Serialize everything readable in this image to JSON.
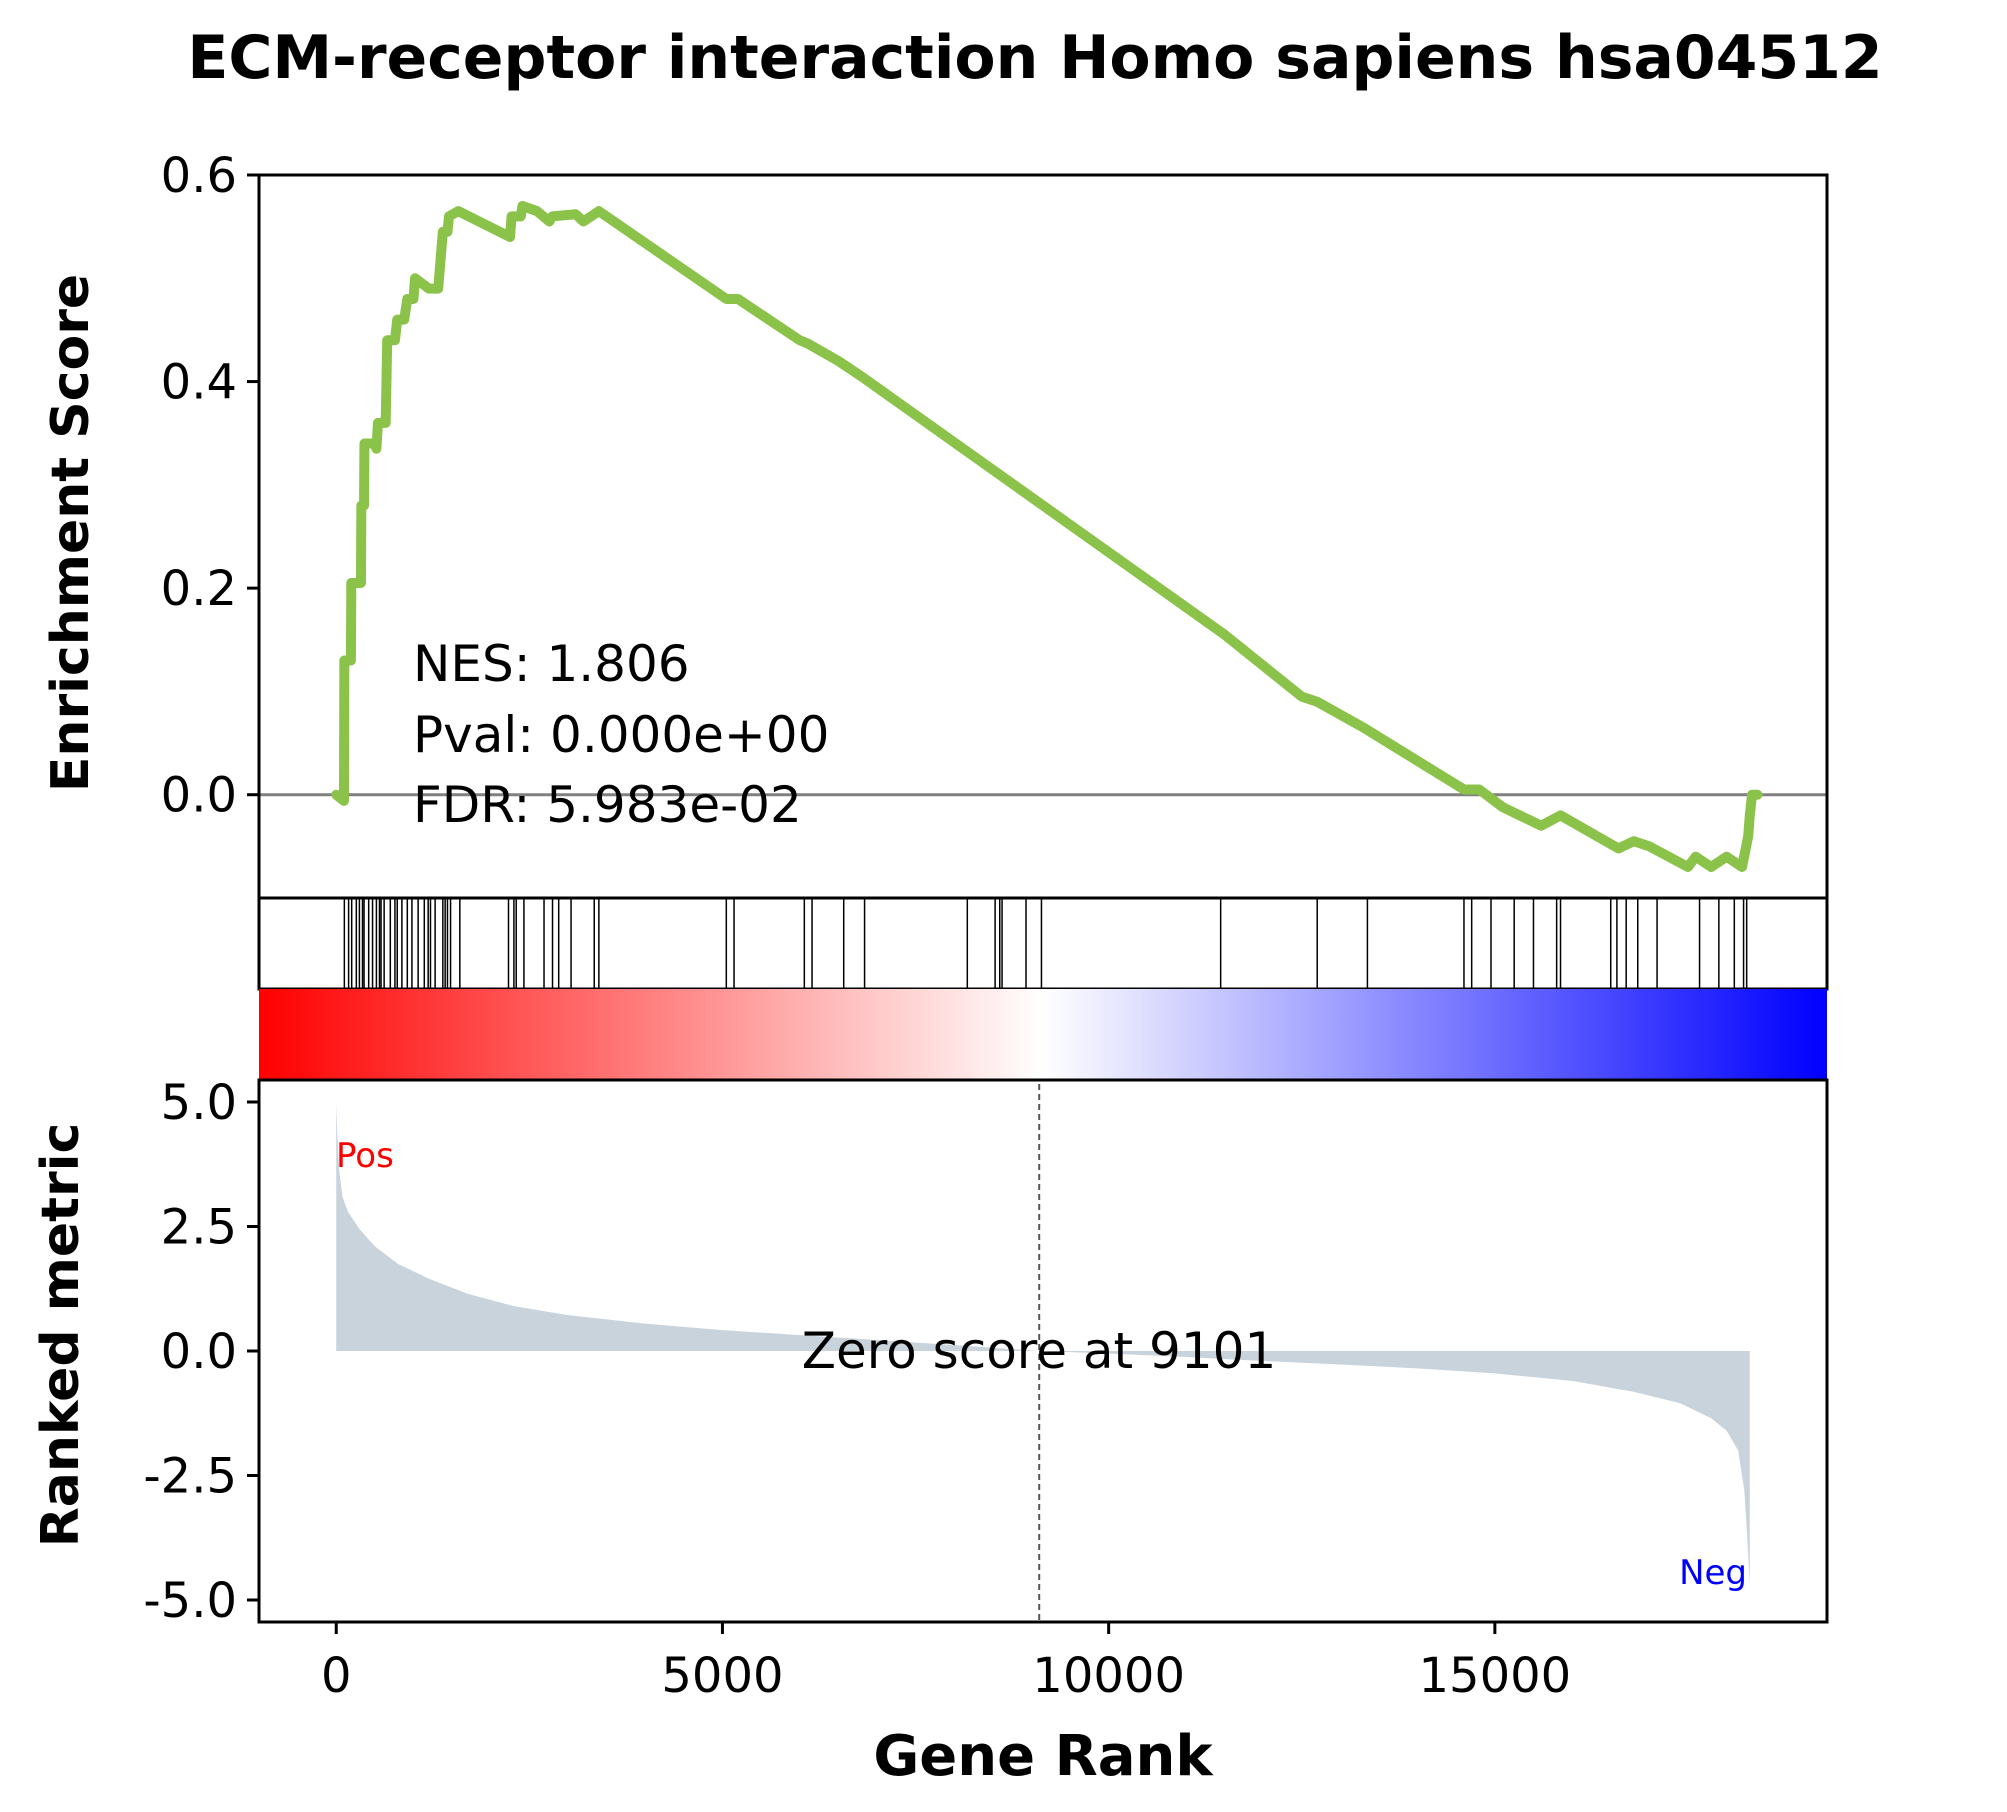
{
  "chart_data": {
    "type": "line",
    "title": "ECM-receptor interaction Homo sapiens hsa04512",
    "x_axis": {
      "label": "Gene Rank",
      "range": [
        -1000,
        19300
      ],
      "ticks": [
        0,
        5000,
        10000,
        15000
      ],
      "tick_labels": [
        "0",
        "5000",
        "10000",
        "15000"
      ]
    },
    "es_panel": {
      "ylabel": "Enrichment Score",
      "ylim": [
        -0.1,
        0.6
      ],
      "yticks": [
        0.0,
        0.2,
        0.4,
        0.6
      ],
      "ytick_labels": [
        "0.0",
        "0.2",
        "0.4",
        "0.6"
      ],
      "line_color": "#8bc34a",
      "zero_line_color": "#808080",
      "annotations": [
        "NES: 1.806",
        "Pval: 0.000e+00",
        "FDR: 5.983e-02"
      ],
      "es_curve": [
        [
          0,
          0.0
        ],
        [
          100,
          -0.006
        ],
        [
          105,
          0.13
        ],
        [
          190,
          0.13
        ],
        [
          195,
          0.205
        ],
        [
          320,
          0.205
        ],
        [
          325,
          0.28
        ],
        [
          360,
          0.28
        ],
        [
          365,
          0.34
        ],
        [
          500,
          0.34
        ],
        [
          520,
          0.335
        ],
        [
          540,
          0.36
        ],
        [
          640,
          0.36
        ],
        [
          660,
          0.44
        ],
        [
          760,
          0.44
        ],
        [
          790,
          0.46
        ],
        [
          880,
          0.46
        ],
        [
          920,
          0.48
        ],
        [
          1000,
          0.48
        ],
        [
          1020,
          0.5
        ],
        [
          1200,
          0.49
        ],
        [
          1320,
          0.49
        ],
        [
          1380,
          0.545
        ],
        [
          1440,
          0.545
        ],
        [
          1460,
          0.56
        ],
        [
          1580,
          0.565
        ],
        [
          2250,
          0.54
        ],
        [
          2270,
          0.56
        ],
        [
          2390,
          0.56
        ],
        [
          2410,
          0.57
        ],
        [
          2600,
          0.565
        ],
        [
          2760,
          0.555
        ],
        [
          2800,
          0.56
        ],
        [
          3100,
          0.562
        ],
        [
          3200,
          0.555
        ],
        [
          3400,
          0.565
        ],
        [
          5050,
          0.48
        ],
        [
          5200,
          0.48
        ],
        [
          6000,
          0.44
        ],
        [
          6100,
          0.437
        ],
        [
          6500,
          0.42
        ],
        [
          6800,
          0.405
        ],
        [
          11500,
          0.155
        ],
        [
          12500,
          0.095
        ],
        [
          12700,
          0.09
        ],
        [
          13300,
          0.065
        ],
        [
          14600,
          0.005
        ],
        [
          14800,
          0.005
        ],
        [
          15100,
          -0.012
        ],
        [
          15600,
          -0.03
        ],
        [
          15850,
          -0.02
        ],
        [
          16600,
          -0.052
        ],
        [
          16800,
          -0.045
        ],
        [
          17000,
          -0.05
        ],
        [
          17500,
          -0.07
        ],
        [
          17600,
          -0.06
        ],
        [
          17800,
          -0.07
        ],
        [
          18000,
          -0.06
        ],
        [
          18200,
          -0.07
        ],
        [
          18280,
          -0.04
        ],
        [
          18300,
          -0.02
        ],
        [
          18330,
          0.0
        ],
        [
          18400,
          0.0
        ]
      ]
    },
    "hits_panel": {
      "hit_ranks": [
        105,
        160,
        200,
        260,
        300,
        340,
        360,
        420,
        470,
        520,
        560,
        580,
        620,
        700,
        760,
        790,
        850,
        920,
        980,
        1060,
        1140,
        1190,
        1220,
        1280,
        1380,
        1410,
        1440,
        1480,
        1600,
        2230,
        2300,
        2330,
        2430,
        2690,
        2800,
        2880,
        3040,
        3340,
        3400,
        5050,
        5150,
        6060,
        6160,
        6570,
        6840,
        8170,
        8530,
        8590,
        8620,
        8930,
        9130,
        11450,
        12700,
        13350,
        14600,
        14700,
        14950,
        15250,
        15500,
        15800,
        15850,
        16500,
        16580,
        16700,
        16850,
        17100,
        17650,
        17900,
        18100,
        18220,
        18260
      ]
    },
    "gradient_bar": {
      "colors": [
        "#ff0000",
        "#ffffff",
        "#0000ff"
      ]
    },
    "ranked_panel": {
      "ylabel": "Ranked metric",
      "ylim": [
        -5.0,
        5.0
      ],
      "yticks": [
        5.0,
        2.5,
        0.0,
        -2.5,
        -5.0
      ],
      "ytick_labels": [
        "5.0",
        "2.5",
        "0.0",
        "-2.5",
        "-5.0"
      ],
      "fill_color": "#c8d3dc",
      "zero_cross_rank": 9101,
      "zero_label": "Zero score at 9101",
      "pos_label": "Pos",
      "neg_label": "Neg",
      "pos_label_color": "#ff0000",
      "neg_label_color": "#0000ff",
      "metric_profile": [
        [
          0,
          5.0
        ],
        [
          15,
          4.3
        ],
        [
          40,
          3.6
        ],
        [
          80,
          3.1
        ],
        [
          150,
          2.8
        ],
        [
          300,
          2.45
        ],
        [
          500,
          2.1
        ],
        [
          800,
          1.75
        ],
        [
          1200,
          1.45
        ],
        [
          1700,
          1.15
        ],
        [
          2300,
          0.9
        ],
        [
          3000,
          0.72
        ],
        [
          4000,
          0.55
        ],
        [
          5000,
          0.42
        ],
        [
          6000,
          0.32
        ],
        [
          7000,
          0.22
        ],
        [
          8000,
          0.12
        ],
        [
          9101,
          0.0
        ],
        [
          10000,
          -0.05
        ],
        [
          11000,
          -0.12
        ],
        [
          12000,
          -0.2
        ],
        [
          13000,
          -0.27
        ],
        [
          14000,
          -0.35
        ],
        [
          15000,
          -0.45
        ],
        [
          16000,
          -0.6
        ],
        [
          16800,
          -0.82
        ],
        [
          17400,
          -1.05
        ],
        [
          17800,
          -1.35
        ],
        [
          18000,
          -1.6
        ],
        [
          18150,
          -2.0
        ],
        [
          18230,
          -2.8
        ],
        [
          18270,
          -3.8
        ],
        [
          18300,
          -4.7
        ]
      ]
    }
  }
}
